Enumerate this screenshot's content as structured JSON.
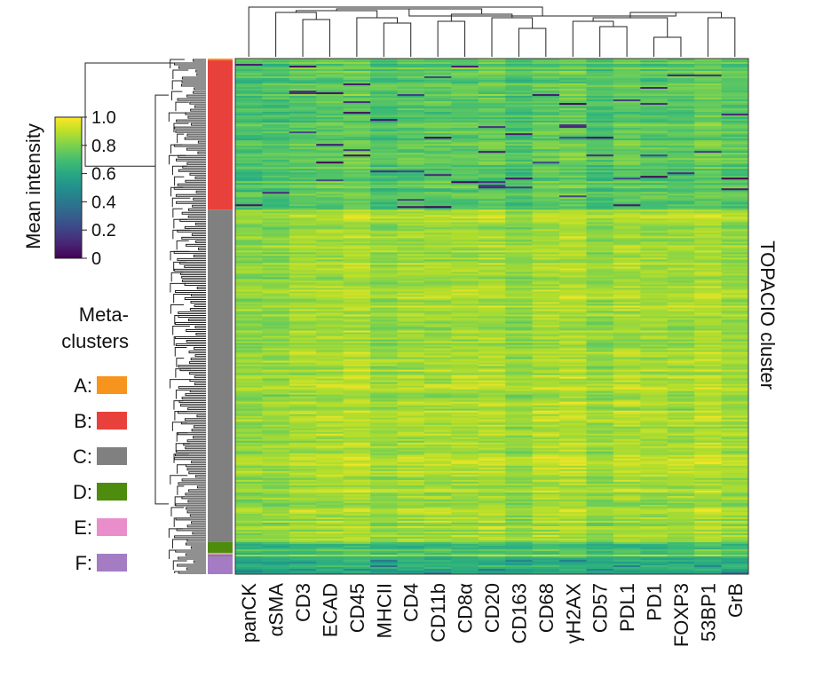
{
  "chart_data": {
    "type": "heatmap",
    "columns": [
      "panCK",
      "αSMA",
      "CD3",
      "ECAD",
      "CD45",
      "MHCII",
      "CD4",
      "CD11b",
      "CD8α",
      "CD20",
      "CD163",
      "CD68",
      "γH2AX",
      "CD57",
      "PDL1",
      "PD1",
      "FOXP3",
      "53BP1",
      "GrB"
    ],
    "ylabel": "TOPACIO cluster",
    "colorbar": {
      "title": "Mean intensity",
      "ticks": [
        "1.0",
        "0.8",
        "0.6",
        "0.4",
        "0.2",
        "0"
      ],
      "vmin": 0,
      "vmax": 1,
      "colormap": "viridis",
      "stops": [
        "#440154",
        "#3b528b",
        "#21918c",
        "#5ec962",
        "#fde725"
      ]
    },
    "metaclusters": {
      "title": "Meta-\nclusters",
      "title_lines": [
        "Meta-",
        "clusters"
      ],
      "items": [
        {
          "label": "A:",
          "color": "#f7941d"
        },
        {
          "label": "B:",
          "color": "#e8413c"
        },
        {
          "label": "C:",
          "color": "#808080"
        },
        {
          "label": "D:",
          "color": "#4d8c0c"
        },
        {
          "label": "E:",
          "color": "#e98ecb"
        },
        {
          "label": "F:",
          "color": "#a37cc4"
        }
      ],
      "row_fractions": [
        {
          "label": "A",
          "fraction": 0.005
        },
        {
          "label": "B",
          "fraction": 0.29
        },
        {
          "label": "C",
          "fraction": 0.645
        },
        {
          "label": "D",
          "fraction": 0.022
        },
        {
          "label": "E",
          "fraction": 0.003
        },
        {
          "label": "F",
          "fraction": 0.035
        }
      ]
    },
    "profile": {
      "A": {
        "mean": 0.72
      },
      "B": {
        "mean": 0.74,
        "low_spots": "sparse dark cells"
      },
      "C": {
        "mean": 0.86
      },
      "D": {
        "mean": 0.7
      },
      "E": {
        "mean": 0.7
      },
      "F": {
        "mean": 0.62
      }
    }
  }
}
